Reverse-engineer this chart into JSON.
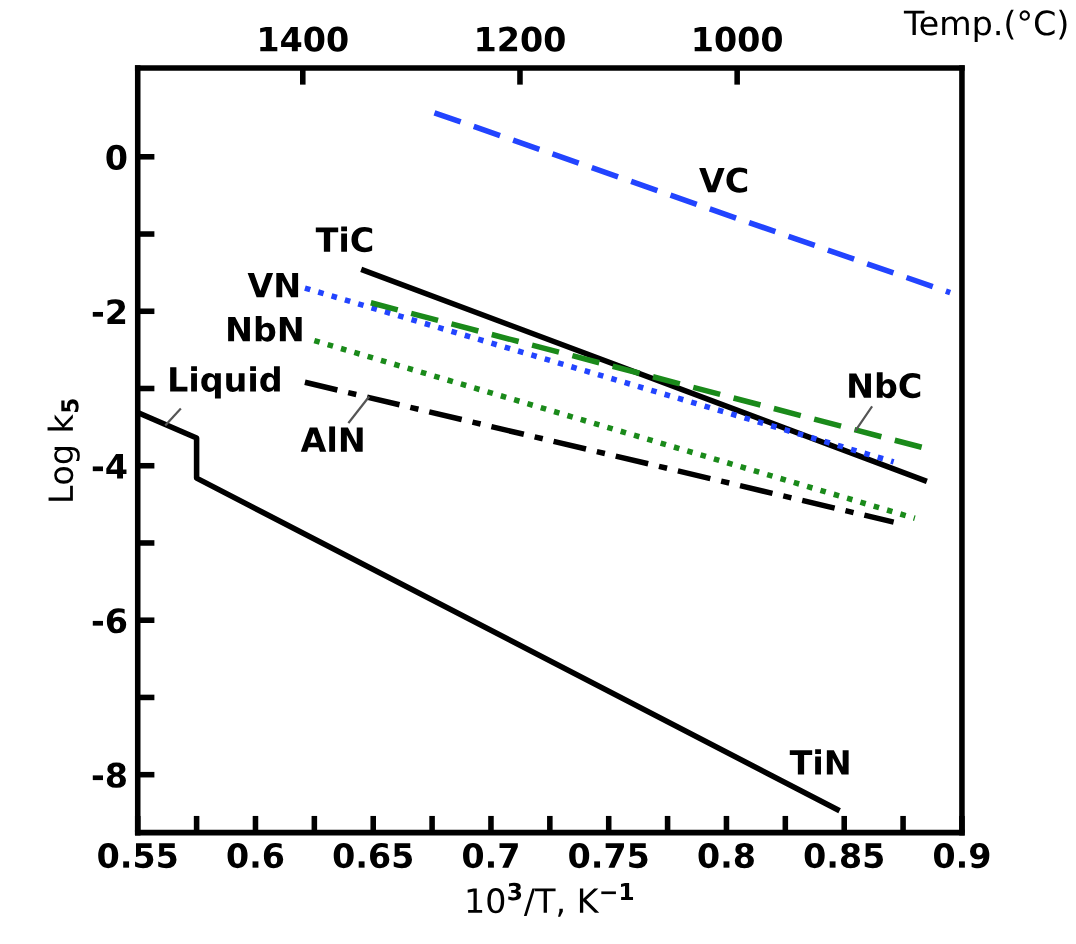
{
  "chart_data": {
    "type": "line",
    "xlabel": "10$^{3}$/T, K$^{−1}$",
    "ylabel": "Log k$_{5}$",
    "x2label": "Temp.(°C)",
    "xlim": [
      0.55,
      0.9
    ],
    "ylim": [
      -8.75,
      1.15
    ],
    "xticks": [
      0.55,
      {
        "value": 0.575,
        "label": null
      },
      0.6,
      {
        "value": 0.625,
        "label": null
      },
      0.65,
      {
        "value": 0.675,
        "label": null
      },
      0.7,
      {
        "value": 0.725,
        "label": null
      },
      0.75,
      {
        "value": 0.775,
        "label": null
      },
      0.8,
      {
        "value": 0.825,
        "label": null
      },
      0.85,
      {
        "value": 0.875,
        "label": null
      },
      0.9
    ],
    "yticks": [
      -8,
      {
        "value": -7,
        "label": null
      },
      -6,
      {
        "value": -5,
        "label": null
      },
      -4,
      {
        "value": -3,
        "label": null
      },
      -2,
      {
        "value": -1,
        "label": null
      },
      0
    ],
    "x2lim": [
      1552,
      793
    ],
    "x2ticks": [
      1400,
      1200,
      1000
    ],
    "grid": false,
    "legend": false,
    "marker": "none",
    "series": [
      {
        "name": "VC",
        "color": "#2244ff",
        "line_style": "dashed",
        "x": [
          0.676,
          0.895
        ],
        "values": [
          0.57,
          -1.76
        ]
      },
      {
        "name": "TiC",
        "color": "#000000",
        "line_style": "solid",
        "x": [
          0.646,
          0.884
        ],
        "values": [
          -1.47,
          -4.19
        ]
      },
      {
        "name": "VN",
        "color": "#2244ff",
        "line_style": "dotted",
        "x": [
          0.621,
          0.871
        ],
        "values": [
          -1.7,
          -3.95
        ]
      },
      {
        "name": "NbC",
        "color": "#1a8a1a",
        "line_style": "dashed",
        "x": [
          0.649,
          0.884
        ],
        "values": [
          -1.89,
          -3.77
        ]
      },
      {
        "name": "NbN",
        "color": "#1a8a1a",
        "line_style": "dotted",
        "x": [
          0.625,
          0.88
        ],
        "values": [
          -2.38,
          -4.68
        ]
      },
      {
        "name": "AlN",
        "color": "#000000",
        "line_style": "dashdot",
        "x": [
          0.621,
          0.871
        ],
        "values": [
          -2.92,
          -4.73
        ]
      },
      {
        "name": "TiN",
        "color": "#000000",
        "line_style": "solid",
        "x": [
          0.55,
          0.575,
          0.575,
          0.847
        ],
        "values": [
          -3.31,
          -3.64,
          -4.16,
          -8.45
        ]
      }
    ],
    "annotations": [
      "Liquid"
    ]
  }
}
